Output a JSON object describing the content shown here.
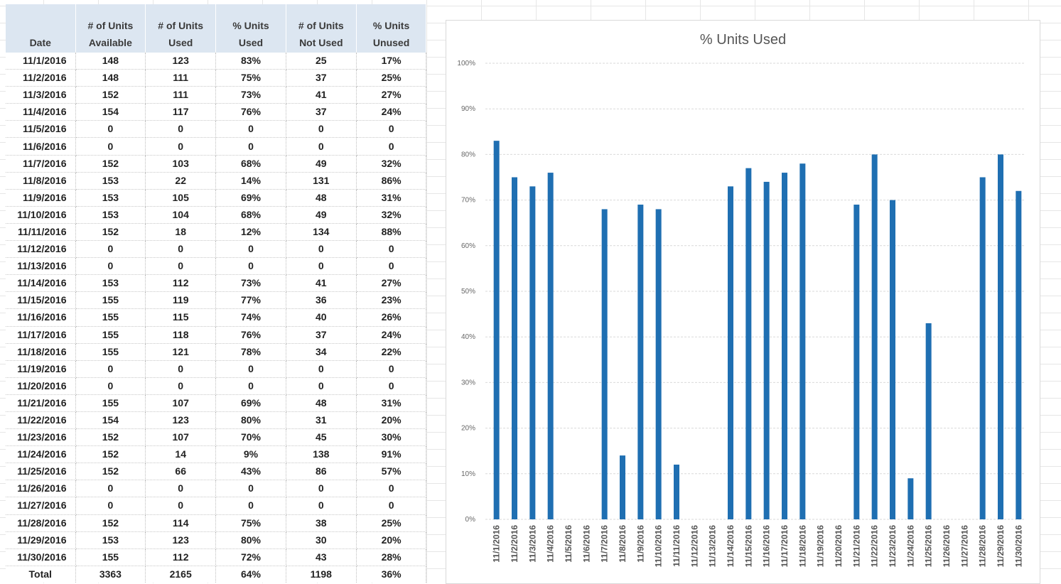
{
  "table": {
    "headers": [
      {
        "line1": "",
        "line2": "Date"
      },
      {
        "line1": "# of Units",
        "line2": "Available"
      },
      {
        "line1": "# of Units",
        "line2": "Used"
      },
      {
        "line1": "% Units",
        "line2": "Used"
      },
      {
        "line1": "# of Units",
        "line2": "Not Used"
      },
      {
        "line1": "% Units",
        "line2": "Unused"
      }
    ],
    "rows": [
      [
        "11/1/2016",
        "148",
        "123",
        "83%",
        "25",
        "17%"
      ],
      [
        "11/2/2016",
        "148",
        "111",
        "75%",
        "37",
        "25%"
      ],
      [
        "11/3/2016",
        "152",
        "111",
        "73%",
        "41",
        "27%"
      ],
      [
        "11/4/2016",
        "154",
        "117",
        "76%",
        "37",
        "24%"
      ],
      [
        "11/5/2016",
        "0",
        "0",
        "0",
        "0",
        "0"
      ],
      [
        "11/6/2016",
        "0",
        "0",
        "0",
        "0",
        "0"
      ],
      [
        "11/7/2016",
        "152",
        "103",
        "68%",
        "49",
        "32%"
      ],
      [
        "11/8/2016",
        "153",
        "22",
        "14%",
        "131",
        "86%"
      ],
      [
        "11/9/2016",
        "153",
        "105",
        "69%",
        "48",
        "31%"
      ],
      [
        "11/10/2016",
        "153",
        "104",
        "68%",
        "49",
        "32%"
      ],
      [
        "11/11/2016",
        "152",
        "18",
        "12%",
        "134",
        "88%"
      ],
      [
        "11/12/2016",
        "0",
        "0",
        "0",
        "0",
        "0"
      ],
      [
        "11/13/2016",
        "0",
        "0",
        "0",
        "0",
        "0"
      ],
      [
        "11/14/2016",
        "153",
        "112",
        "73%",
        "41",
        "27%"
      ],
      [
        "11/15/2016",
        "155",
        "119",
        "77%",
        "36",
        "23%"
      ],
      [
        "11/16/2016",
        "155",
        "115",
        "74%",
        "40",
        "26%"
      ],
      [
        "11/17/2016",
        "155",
        "118",
        "76%",
        "37",
        "24%"
      ],
      [
        "11/18/2016",
        "155",
        "121",
        "78%",
        "34",
        "22%"
      ],
      [
        "11/19/2016",
        "0",
        "0",
        "0",
        "0",
        "0"
      ],
      [
        "11/20/2016",
        "0",
        "0",
        "0",
        "0",
        "0"
      ],
      [
        "11/21/2016",
        "155",
        "107",
        "69%",
        "48",
        "31%"
      ],
      [
        "11/22/2016",
        "154",
        "123",
        "80%",
        "31",
        "20%"
      ],
      [
        "11/23/2016",
        "152",
        "107",
        "70%",
        "45",
        "30%"
      ],
      [
        "11/24/2016",
        "152",
        "14",
        "9%",
        "138",
        "91%"
      ],
      [
        "11/25/2016",
        "152",
        "66",
        "43%",
        "86",
        "57%"
      ],
      [
        "11/26/2016",
        "0",
        "0",
        "0",
        "0",
        "0"
      ],
      [
        "11/27/2016",
        "0",
        "0",
        "0",
        "0",
        "0"
      ],
      [
        "11/28/2016",
        "152",
        "114",
        "75%",
        "38",
        "25%"
      ],
      [
        "11/29/2016",
        "153",
        "123",
        "80%",
        "30",
        "20%"
      ],
      [
        "11/30/2016",
        "155",
        "112",
        "72%",
        "43",
        "28%"
      ]
    ],
    "total": [
      "Total",
      "3363",
      "2165",
      "64%",
      "1198",
      "36%"
    ]
  },
  "colors": {
    "bar": "#1f6fb2",
    "header_bg": "#dce6f1",
    "gridline": "#d9d9d9"
  },
  "chart_data": {
    "type": "bar",
    "title": "% Units Used",
    "xlabel": "",
    "ylabel": "",
    "ylim": [
      0,
      100
    ],
    "yticks": [
      0,
      10,
      20,
      30,
      40,
      50,
      60,
      70,
      80,
      90,
      100
    ],
    "ytick_labels": [
      "0%",
      "10%",
      "20%",
      "30%",
      "40%",
      "50%",
      "60%",
      "70%",
      "80%",
      "90%",
      "100%"
    ],
    "grid": true,
    "legend": "none",
    "categories": [
      "11/1/2016",
      "11/2/2016",
      "11/3/2016",
      "11/4/2016",
      "11/5/2016",
      "11/6/2016",
      "11/7/2016",
      "11/8/2016",
      "11/9/2016",
      "11/10/2016",
      "11/11/2016",
      "11/12/2016",
      "11/13/2016",
      "11/14/2016",
      "11/15/2016",
      "11/16/2016",
      "11/17/2016",
      "11/18/2016",
      "11/19/2016",
      "11/20/2016",
      "11/21/2016",
      "11/22/2016",
      "11/23/2016",
      "11/24/2016",
      "11/25/2016",
      "11/26/2016",
      "11/27/2016",
      "11/28/2016",
      "11/29/2016",
      "11/30/2016"
    ],
    "values": [
      83,
      75,
      73,
      76,
      0,
      0,
      68,
      14,
      69,
      68,
      12,
      0,
      0,
      73,
      77,
      74,
      76,
      78,
      0,
      0,
      69,
      80,
      70,
      9,
      43,
      0,
      0,
      75,
      80,
      72
    ]
  }
}
